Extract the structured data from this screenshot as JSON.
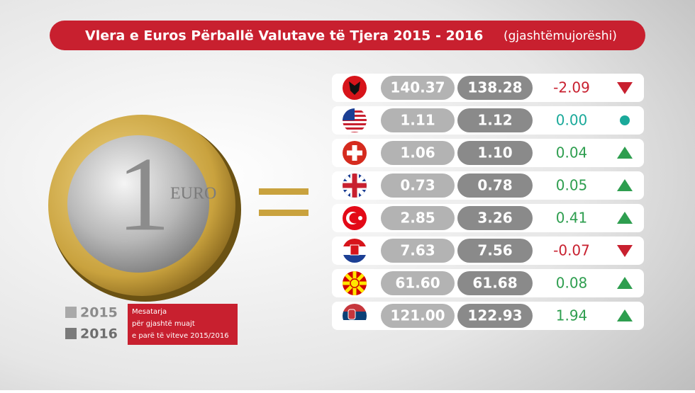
{
  "header": {
    "title": "Vlera e Euros Përballë Valutave të Tjera 2015 - 2016",
    "subtitle": "(gjashtëmujorëshi)"
  },
  "table": {
    "rows": [
      [
        "140.37",
        "138.28",
        "-2.09"
      ],
      [
        "1.11",
        "1.12",
        "0.00"
      ],
      [
        "1.06",
        "1.10",
        "0.04"
      ],
      [
        "0.73",
        "0.78",
        "0.05"
      ],
      [
        "2.85",
        "3.26",
        "0.41"
      ],
      [
        "7.63",
        "7.56",
        "-0.07"
      ],
      [
        "61.60",
        "61.68",
        "0.08"
      ],
      [
        "121.00",
        "122.93",
        "1.94"
      ]
    ]
  },
  "legend": {
    "items": [
      "2015",
      "2016"
    ],
    "note": [
      "Mesatarja",
      "për gjashtë muajt",
      "e parë të viteve 2015/2016"
    ]
  }
}
